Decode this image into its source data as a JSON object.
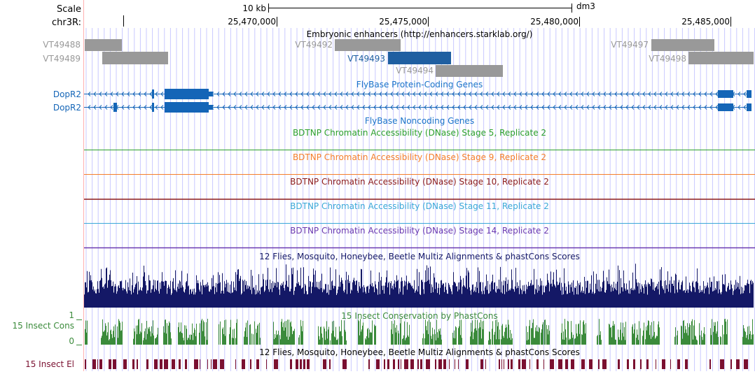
{
  "colors": {
    "ruler": "#000000",
    "grid": "#c9c9ff",
    "left_boundary": "#ffb0b0",
    "enhancer_gray": "#999999",
    "enhancer_selected": "#1f5fa1",
    "gene_blue": "#1465b7",
    "track_title_blue": "#1a73c9",
    "dnase_stage5": "#2ca02c",
    "dnase_stage9": "#f57f2b",
    "dnase_stage10": "#8b1a1a",
    "dnase_stage11": "#3ba8d8",
    "dnase_stage14": "#6b3ab0",
    "multiz_navy": "#141866",
    "insect_cons_green": "#3b8b3b",
    "insect_el_maroon": "#7a1030"
  },
  "ruler": {
    "scale_label": "Scale",
    "chrom_label": "chr3R:",
    "scale_bar_label": "10 kb",
    "assembly": "dm3",
    "positions": [
      "25,470,000",
      "25,475,000",
      "25,480,000",
      "25,485,000"
    ]
  },
  "tracks": {
    "enhancers": {
      "title": "Embryonic enhancers (http://enhancers.starklab.org/)",
      "items": [
        {
          "name": "VT49488",
          "selected": false
        },
        {
          "name": "VT49489",
          "selected": false
        },
        {
          "name": "VT49492",
          "selected": false
        },
        {
          "name": "VT49493",
          "selected": true
        },
        {
          "name": "VT49494",
          "selected": false
        },
        {
          "name": "VT49497",
          "selected": false
        },
        {
          "name": "VT49498",
          "selected": false
        }
      ]
    },
    "protein_coding": {
      "title": "FlyBase Protein-Coding Genes",
      "genes": [
        {
          "name": "DopR2",
          "strand": "-"
        },
        {
          "name": "DopR2",
          "strand": "-"
        }
      ]
    },
    "noncoding": {
      "title": "FlyBase Noncoding Genes"
    },
    "dnase": [
      {
        "title": "BDTNP Chromatin Accessibility (DNase) Stage 5, Replicate 2",
        "color_key": "dnase_stage5"
      },
      {
        "title": "BDTNP Chromatin Accessibility (DNase) Stage 9, Replicate 2",
        "color_key": "dnase_stage9"
      },
      {
        "title": "BDTNP Chromatin Accessibility (DNase) Stage 10, Replicate 2",
        "color_key": "dnase_stage10"
      },
      {
        "title": "BDTNP Chromatin Accessibility (DNase) Stage 11, Replicate 2",
        "color_key": "dnase_stage11"
      },
      {
        "title": "BDTNP Chromatin Accessibility (DNase) Stage 14, Replicate 2",
        "color_key": "dnase_stage14"
      }
    ],
    "multiz": {
      "title": "12 Flies, Mosquito, Honeybee, Beetle Multiz Alignments & phastCons Scores"
    },
    "insect_cons": {
      "title": "15 Insect Conservation by PhastCons",
      "side_label": "15 Insect Cons",
      "ymax_label": "1",
      "ymin_label": "0"
    },
    "insect_el": {
      "title": "12 Flies, Mosquito, Honeybee, Beetle Multiz Alignments & phastCons Scores",
      "side_label": "15 Insect El"
    }
  }
}
